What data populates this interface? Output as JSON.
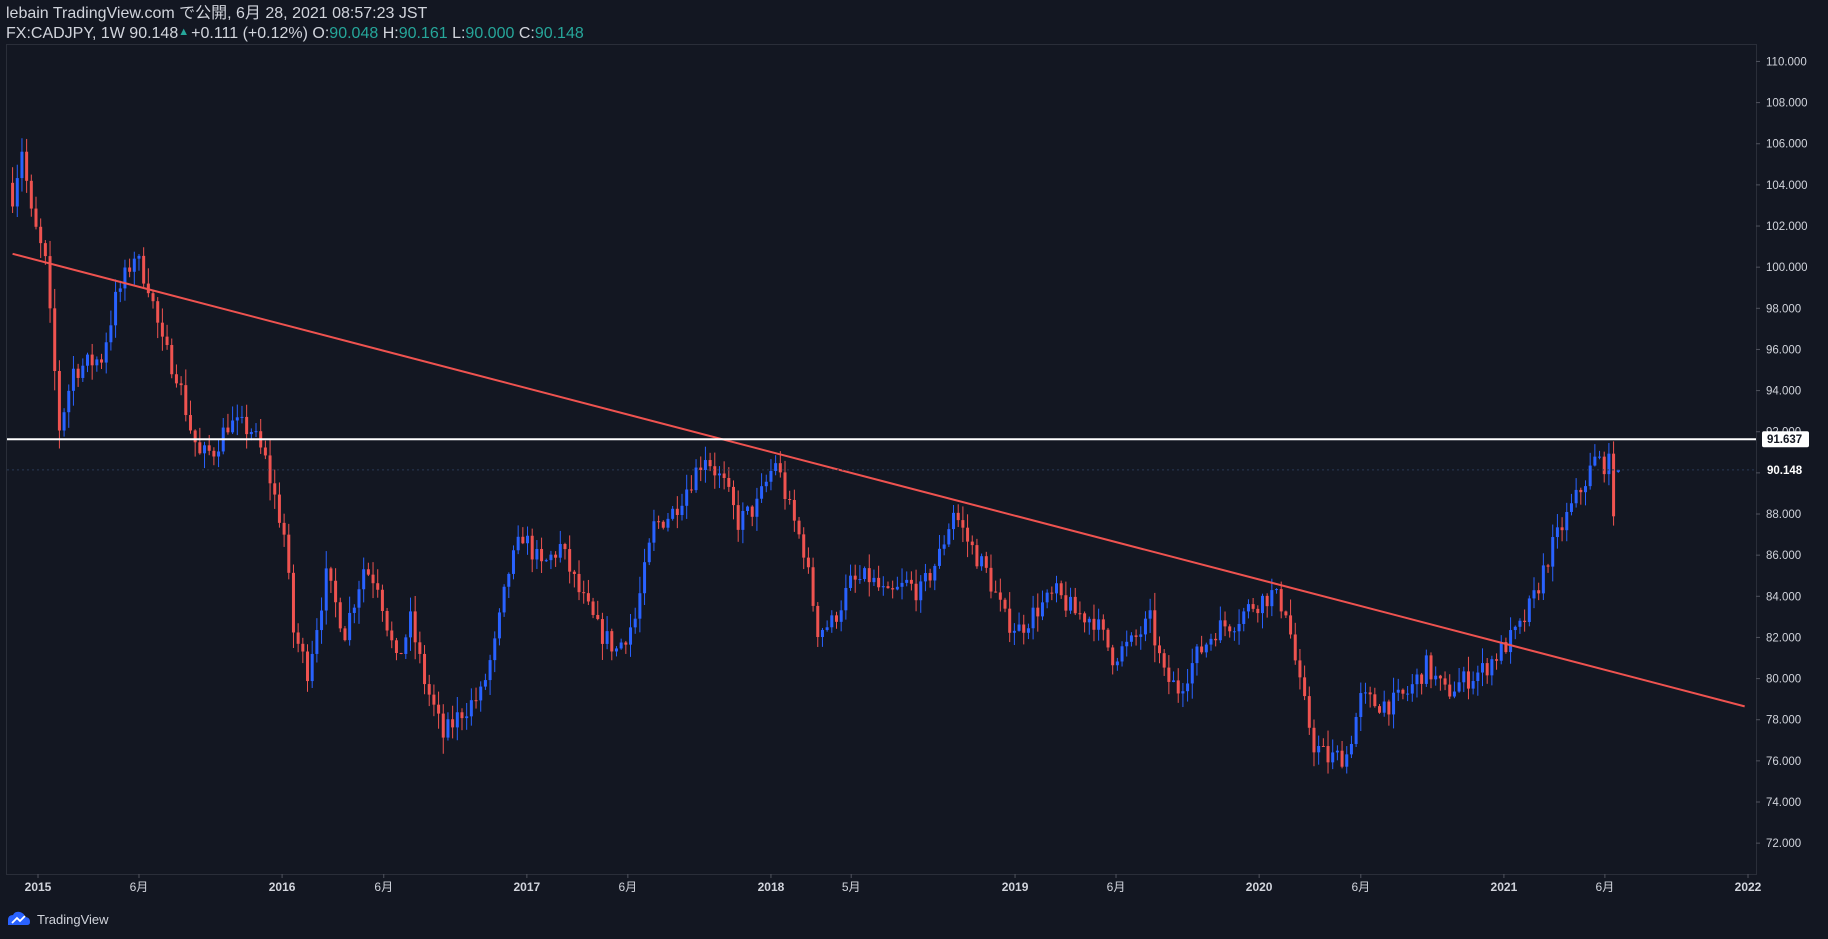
{
  "header": {
    "publish_line": "lebain TradingView.com で公開, 6月 28, 2021 08:57:23 JST",
    "symbol_prefix": "FX:CADJPY, 1W 90.148",
    "up_arrow": "▲",
    "change": "+0.111 (+0.12%)",
    "o_label": "O:",
    "o_value": "90.048",
    "h_label": "H:",
    "h_value": "90.161",
    "l_label": "L:",
    "l_value": "90.000",
    "c_label": "C:",
    "c_value": "90.148"
  },
  "footer": {
    "brand": "TradingView",
    "logo_icon": "tradingview-logo-icon"
  },
  "colors": {
    "background": "#131722",
    "up_candle": "#2962ff",
    "down_candle": "#ef5350",
    "trendline": "#ef5350",
    "horizontal_line": "#ffffff",
    "axis_text": "#d1d4dc",
    "accent_text": "#26a69a"
  },
  "chart_data": {
    "type": "candlestick",
    "title": "",
    "xlabel": "",
    "ylabel": "",
    "ylim": [
      70.5,
      110.8
    ],
    "grid": false,
    "y_ticks": [
      "72.000",
      "74.000",
      "76.000",
      "78.000",
      "80.000",
      "82.000",
      "84.000",
      "86.000",
      "88.000",
      "90.000",
      "92.000",
      "94.000",
      "96.000",
      "98.000",
      "100.000",
      "102.000",
      "104.000",
      "106.000",
      "108.000",
      "110.000"
    ],
    "x_ticks": [
      {
        "label": "2015",
        "date": "2015-01-01",
        "bold": true
      },
      {
        "label": "6月",
        "date": "2015-06-01",
        "bold": false
      },
      {
        "label": "2016",
        "date": "2016-01-01",
        "bold": true
      },
      {
        "label": "6月",
        "date": "2016-06-01",
        "bold": false
      },
      {
        "label": "2017",
        "date": "2017-01-01",
        "bold": true
      },
      {
        "label": "6月",
        "date": "2017-06-01",
        "bold": false
      },
      {
        "label": "2018",
        "date": "2018-01-01",
        "bold": true
      },
      {
        "label": "5月",
        "date": "2018-05-01",
        "bold": false
      },
      {
        "label": "2019",
        "date": "2019-01-01",
        "bold": true
      },
      {
        "label": "6月",
        "date": "2019-06-01",
        "bold": false
      },
      {
        "label": "2020",
        "date": "2020-01-01",
        "bold": true
      },
      {
        "label": "6月",
        "date": "2020-06-01",
        "bold": false
      },
      {
        "label": "2021",
        "date": "2021-01-01",
        "bold": true
      },
      {
        "label": "6月",
        "date": "2021-06-01",
        "bold": false
      },
      {
        "label": "2022",
        "date": "2022-01-01",
        "bold": true
      }
    ],
    "candle_interval": "1W",
    "x_start": "2014-11-24",
    "path_closes": [
      [
        "2014-11-24",
        103.5
      ],
      [
        "2014-12-08",
        105.8
      ],
      [
        "2014-12-22",
        102.5
      ],
      [
        "2015-01-12",
        100.2
      ],
      [
        "2015-02-02",
        92.2
      ],
      [
        "2015-02-23",
        95.0
      ],
      [
        "2015-03-16",
        95.3
      ],
      [
        "2015-04-06",
        95.6
      ],
      [
        "2015-04-27",
        98.4
      ],
      [
        "2015-05-25",
        100.6
      ],
      [
        "2015-06-15",
        99.2
      ],
      [
        "2015-07-06",
        96.2
      ],
      [
        "2015-07-27",
        94.9
      ],
      [
        "2015-08-17",
        92.2
      ],
      [
        "2015-08-31",
        90.8
      ],
      [
        "2015-09-21",
        91.1
      ],
      [
        "2015-10-12",
        92.4
      ],
      [
        "2015-11-16",
        92.1
      ],
      [
        "2015-12-07",
        90.6
      ],
      [
        "2016-01-04",
        87.0
      ],
      [
        "2016-01-18",
        82.3
      ],
      [
        "2016-02-08",
        80.4
      ],
      [
        "2016-03-07",
        84.9
      ],
      [
        "2016-04-04",
        82.3
      ],
      [
        "2016-05-02",
        85.4
      ],
      [
        "2016-05-23",
        84.7
      ],
      [
        "2016-06-20",
        80.7
      ],
      [
        "2016-07-11",
        82.8
      ],
      [
        "2016-08-01",
        79.9
      ],
      [
        "2016-08-29",
        77.2
      ],
      [
        "2016-09-26",
        78.4
      ],
      [
        "2016-10-24",
        79.2
      ],
      [
        "2016-11-14",
        81.6
      ],
      [
        "2016-12-05",
        85.2
      ],
      [
        "2016-12-26",
        87.0
      ],
      [
        "2017-01-23",
        85.4
      ],
      [
        "2017-02-20",
        86.4
      ],
      [
        "2017-03-20",
        84.2
      ],
      [
        "2017-04-17",
        82.4
      ],
      [
        "2017-05-15",
        81.4
      ],
      [
        "2017-06-12",
        82.9
      ],
      [
        "2017-07-10",
        87.4
      ],
      [
        "2017-08-07",
        88.1
      ],
      [
        "2017-09-04",
        89.7
      ],
      [
        "2017-09-25",
        90.9
      ],
      [
        "2017-10-23",
        89.4
      ],
      [
        "2017-11-13",
        87.6
      ],
      [
        "2017-12-11",
        88.4
      ],
      [
        "2018-01-08",
        90.6
      ],
      [
        "2018-01-29",
        88.2
      ],
      [
        "2018-02-19",
        86.3
      ],
      [
        "2018-03-12",
        82.4
      ],
      [
        "2018-04-02",
        82.7
      ],
      [
        "2018-04-30",
        84.6
      ],
      [
        "2018-05-28",
        84.9
      ],
      [
        "2018-06-25",
        83.9
      ],
      [
        "2018-07-23",
        84.6
      ],
      [
        "2018-08-13",
        84.2
      ],
      [
        "2018-09-10",
        86.0
      ],
      [
        "2018-10-01",
        88.2
      ],
      [
        "2018-10-22",
        86.7
      ],
      [
        "2018-11-19",
        85.2
      ],
      [
        "2018-12-17",
        82.9
      ],
      [
        "2019-01-07",
        82.4
      ],
      [
        "2019-02-04",
        83.4
      ],
      [
        "2019-03-04",
        84.1
      ],
      [
        "2019-04-01",
        83.2
      ],
      [
        "2019-04-29",
        82.9
      ],
      [
        "2019-05-27",
        81.1
      ],
      [
        "2019-06-24",
        81.7
      ],
      [
        "2019-07-22",
        82.8
      ],
      [
        "2019-08-12",
        80.1
      ],
      [
        "2019-09-02",
        79.5
      ],
      [
        "2019-09-30",
        81.1
      ],
      [
        "2019-10-28",
        82.4
      ],
      [
        "2019-11-25",
        82.8
      ],
      [
        "2019-12-23",
        83.6
      ],
      [
        "2020-01-20",
        84.1
      ],
      [
        "2020-02-10",
        83.4
      ],
      [
        "2020-03-02",
        79.6
      ],
      [
        "2020-03-23",
        76.8
      ],
      [
        "2020-04-13",
        76.1
      ],
      [
        "2020-05-11",
        76.3
      ],
      [
        "2020-06-01",
        79.0
      ],
      [
        "2020-06-22",
        78.8
      ],
      [
        "2020-07-20",
        78.8
      ],
      [
        "2020-08-10",
        79.3
      ],
      [
        "2020-09-07",
        80.6
      ],
      [
        "2020-10-05",
        79.3
      ],
      [
        "2020-11-02",
        79.9
      ],
      [
        "2020-11-30",
        80.4
      ],
      [
        "2020-12-28",
        81.4
      ],
      [
        "2021-01-25",
        82.4
      ],
      [
        "2021-02-15",
        83.9
      ],
      [
        "2021-03-08",
        85.9
      ],
      [
        "2021-03-29",
        87.4
      ],
      [
        "2021-04-26",
        89.2
      ],
      [
        "2021-05-17",
        90.6
      ],
      [
        "2021-06-07",
        90.4
      ],
      [
        "2021-06-14",
        88.4
      ],
      [
        "2021-06-21",
        90.148
      ]
    ],
    "annotations": [
      {
        "type": "trendline",
        "from": [
          "2014-11-24",
          100.65
        ],
        "to": [
          "2021-12-27",
          78.65
        ]
      },
      {
        "type": "horizontal_line",
        "value": 91.637,
        "label": "91.637"
      },
      {
        "type": "last_price",
        "value": 90.148,
        "label": "90.148"
      }
    ]
  }
}
